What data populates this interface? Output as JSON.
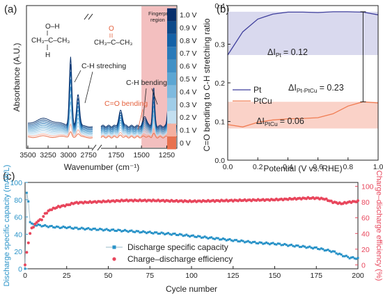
{
  "panel_labels": [
    "(a)",
    "(b)",
    "(c)"
  ],
  "chart_data": [
    {
      "type": "line",
      "panel": "(a)",
      "xlabel": "Wavenumber (cm⁻¹)",
      "ylabel": "Absorbance (A.U.)",
      "x_reversed": true,
      "x_broken_axis": true,
      "xticks": [
        "3500",
        "3250",
        "3000",
        "2750",
        "1750",
        "1500",
        "1250"
      ],
      "x_segments": [
        [
          3500,
          2700
        ],
        [
          1900,
          1150
        ]
      ],
      "shaded_region": {
        "label": "Fingerprint\nregion",
        "x": [
          1500,
          1150
        ],
        "color": "#f2b8b8"
      },
      "colorbar_labels": [
        "1.0 V",
        "0.9 V",
        "0.8 V",
        "0.7 V",
        "0.6 V",
        "0.5 V",
        "0.4 V",
        "0.3 V",
        "0.2 V",
        "0.1 V",
        "0 V"
      ],
      "colorbar_colors": [
        "#08306b",
        "#0d4a8a",
        "#1461a6",
        "#2a7ab9",
        "#4191c6",
        "#5ca6d3",
        "#7ebadf",
        "#a0cde8",
        "#c3dff0",
        "#f4b0a0",
        "#e8724f"
      ],
      "annotations": {
        "isopropanol_top": "O–H",
        "isopropanol_mid": "CH₃–C–CH₃",
        "isopropanol_bottom": "H",
        "acetone_top": "O",
        "acetone_mid": "CH₃–C–CH₃",
        "ch_stretch": "C-H streching",
        "ch_bend": "C-H bending",
        "co_bend": "C=O bending"
      }
    },
    {
      "type": "line",
      "panel": "(b)",
      "xlabel": "Potential (V vs. RHE)",
      "ylabel": "C=O bending to C-H stretching ratio",
      "xlim": [
        0,
        1.0
      ],
      "ylim": [
        0.0,
        0.4
      ],
      "xticks": [
        "0.0",
        "0.2",
        "0.4",
        "0.6",
        "0.8",
        "1.0"
      ],
      "yticks": [
        "0.0",
        "0.1",
        "0.2",
        "0.3",
        "0.4"
      ],
      "series": [
        {
          "name": "Pt",
          "color": "#3f3f9c",
          "x": [
            0.0,
            0.1,
            0.2,
            0.3,
            0.4,
            0.5,
            0.6,
            0.7,
            0.8,
            0.9,
            1.0
          ],
          "y": [
            0.272,
            0.332,
            0.365,
            0.378,
            0.383,
            0.383,
            0.382,
            0.384,
            0.384,
            0.383,
            0.376
          ]
        },
        {
          "name": "PtCu",
          "color": "#f07c52",
          "x": [
            0.0,
            0.1,
            0.2,
            0.3,
            0.4,
            0.5,
            0.6,
            0.7,
            0.8,
            0.9,
            1.0
          ],
          "y": [
            0.092,
            0.086,
            0.098,
            0.104,
            0.107,
            0.108,
            0.11,
            0.12,
            0.14,
            0.151,
            0.148
          ]
        }
      ],
      "bands": [
        {
          "ylim": [
            0.272,
            0.384
          ],
          "color": "#d9d9ee",
          "label": "ΔI",
          "sub": "Pt",
          "value": "= 0.12"
        },
        {
          "ylim": [
            0.082,
            0.151
          ],
          "color": "#fad2c8",
          "label": "ΔI",
          "sub": "PtCu",
          "value": "= 0.06"
        }
      ],
      "diff_annotation": {
        "label": "ΔI",
        "sub": "Pt-PtCu",
        "value": "= 0.23",
        "x": 0.9,
        "y_from": 0.151,
        "y_to": 0.384
      }
    },
    {
      "type": "line",
      "panel": "(c)",
      "xlabel": "Cycle number",
      "ylabel": "Discharge specific capacity (mAh/L)",
      "y2label": "Charge–discharge efficiency (%)",
      "xlim": [
        0,
        200
      ],
      "ylim": [
        0,
        100
      ],
      "y2lim": [
        -5,
        105
      ],
      "xticks": [
        "0",
        "25",
        "50",
        "75",
        "100",
        "125",
        "150",
        "175",
        "200"
      ],
      "yticks": [
        "0",
        "20",
        "40",
        "60",
        "80",
        "100"
      ],
      "y2ticks": [
        "0",
        "20",
        "40",
        "60",
        "80",
        "100"
      ],
      "legend_position": "center",
      "series": [
        {
          "name": "Discharge specific capacity",
          "axis": "left",
          "color": "#2a93c8",
          "x": [
            0,
            1,
            2,
            3,
            5,
            10,
            15,
            20,
            25,
            30,
            40,
            50,
            60,
            75,
            90,
            100,
            110,
            125,
            140,
            150,
            160,
            175,
            185,
            190,
            195,
            200
          ],
          "y": [
            0,
            88,
            78,
            54,
            51,
            50,
            49,
            48,
            48,
            47,
            46,
            45,
            44,
            42,
            40,
            38,
            36,
            33,
            30,
            29,
            27,
            24,
            20,
            16,
            13,
            12
          ]
        },
        {
          "name": "Charge–discharge efficiency",
          "axis": "right",
          "color": "#e8465c",
          "x": [
            0,
            1,
            2,
            3,
            4,
            5,
            6,
            8,
            10,
            12,
            15,
            20,
            25,
            30,
            40,
            50,
            60,
            75,
            100,
            125,
            150,
            160,
            170,
            175,
            180,
            185,
            190,
            195,
            200
          ],
          "y": [
            0,
            16,
            28,
            40,
            47,
            48,
            52,
            56,
            58,
            65,
            70,
            74,
            76,
            79,
            80,
            81,
            82,
            82,
            81,
            82,
            83,
            84,
            85,
            85,
            84,
            80,
            78,
            80,
            81
          ]
        }
      ]
    }
  ]
}
